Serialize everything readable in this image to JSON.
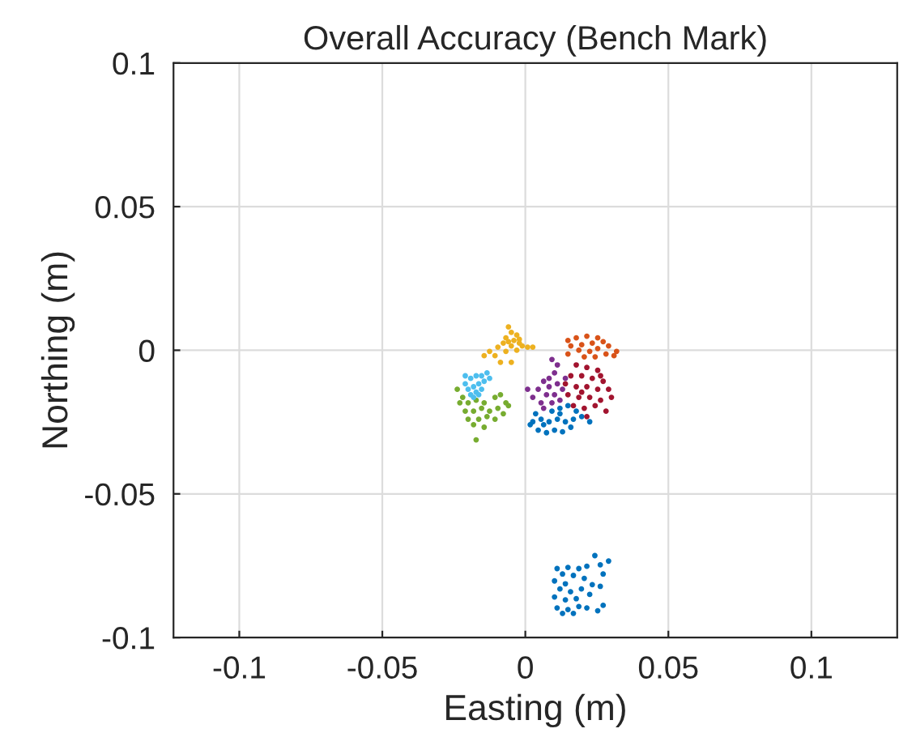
{
  "chart_data": {
    "type": "scatter",
    "title": "Overall Accuracy (Bench Mark)",
    "xlabel": "Easting (m)",
    "ylabel": "Northing (m)",
    "xlim": [
      -0.123,
      0.13
    ],
    "ylim": [
      -0.1,
      0.1
    ],
    "xticks": [
      -0.1,
      -0.05,
      0,
      0.05,
      0.1
    ],
    "yticks": [
      -0.1,
      -0.05,
      0,
      0.05,
      0.1
    ],
    "grid": true,
    "marker": "circle",
    "series": [
      {
        "color": "#0072bd",
        "x": [
          0.0036,
          0.0093,
          0.0121,
          0.0149,
          0.0178,
          0.0026,
          0.0055,
          0.0083,
          0.0112,
          0.014,
          0.0168,
          0.0197,
          0.0045,
          0.0074,
          0.0102,
          0.013,
          0.0159,
          0.0225,
          0.0017,
          0.0064,
          0.0121,
          0.0243,
          0.0291,
          0.0262,
          0.0111,
          0.0149,
          0.0187,
          0.0215,
          0.013,
          0.0168,
          0.0206,
          0.0272,
          0.0102,
          0.014,
          0.0234,
          0.0262,
          0.0121,
          0.0158,
          0.0196,
          0.0225,
          0.0102,
          0.014,
          0.0178,
          0.0272,
          0.0111,
          0.0149,
          0.0187,
          0.0215,
          0.0253,
          0.013,
          0.0168
        ],
        "values": [
          -0.0221,
          -0.0212,
          -0.0202,
          -0.0193,
          -0.0212,
          -0.0249,
          -0.024,
          -0.0249,
          -0.024,
          -0.0249,
          -0.024,
          -0.0231,
          -0.0278,
          -0.0287,
          -0.0278,
          -0.0284,
          -0.0268,
          -0.0249,
          -0.0259,
          -0.0259,
          -0.0221,
          -0.0715,
          -0.0734,
          -0.0747,
          -0.076,
          -0.0756,
          -0.076,
          -0.0752,
          -0.0779,
          -0.0784,
          -0.0794,
          -0.0779,
          -0.0803,
          -0.0813,
          -0.0816,
          -0.0822,
          -0.0831,
          -0.0841,
          -0.0831,
          -0.085,
          -0.0859,
          -0.0869,
          -0.0865,
          -0.0888,
          -0.0897,
          -0.0903,
          -0.0892,
          -0.0897,
          -0.0907,
          -0.0916,
          -0.0916
        ]
      },
      {
        "color": "#d95319",
        "x": [
          0.0149,
          0.0178,
          0.0215,
          0.0253,
          0.0159,
          0.0197,
          0.0234,
          0.0272,
          0.0291,
          0.0319,
          0.031,
          0.0149,
          0.0187,
          0.0225,
          0.0253,
          0.0282,
          0.0206,
          0.0244
        ],
        "values": [
          0.0034,
          0.0043,
          0.0049,
          0.0043,
          0.0015,
          0.0019,
          0.0025,
          0.003,
          0.0015,
          -0.0004,
          -0.0019,
          -0.0013,
          0,
          -0.0004,
          0.0006,
          -0.0013,
          -0.0023,
          -0.0023
        ]
      },
      {
        "color": "#edb120",
        "x": [
          -0.0059,
          -0.0049,
          -0.003,
          -0.0068,
          -0.004,
          -0.0021,
          -0.0077,
          -0.0049,
          -0.0011,
          -0.0096,
          -0.0125,
          -0.0144,
          -0.0068,
          -0.003,
          0.0008,
          0.0026,
          -0.0087,
          -0.0049,
          -0.0106,
          -0.0059,
          -0.0021
        ],
        "values": [
          0.0081,
          0.0062,
          0.0053,
          0.0043,
          0.0034,
          0.0025,
          0.0025,
          0.0015,
          0.0015,
          0.0011,
          -0.0004,
          -0.0019,
          -0.0004,
          0,
          0.0011,
          0.0011,
          -0.0042,
          -0.0042,
          -0.0019,
          0.003,
          0.0038
        ]
      },
      {
        "color": "#7e2f8e",
        "x": [
          0.0093,
          0.0112,
          0.0102,
          0.0064,
          0.0083,
          0.0112,
          0.0045,
          0.0074,
          0.0102,
          0.013,
          0.0026,
          0.0055,
          0.0093,
          0.014,
          0.0008,
          0.0121,
          0.0083,
          0.0064
        ],
        "values": [
          -0.0032,
          -0.0051,
          -0.0079,
          -0.0108,
          -0.0127,
          -0.0117,
          -0.0136,
          -0.0155,
          -0.0155,
          -0.0136,
          -0.0164,
          -0.0183,
          -0.0183,
          -0.0098,
          -0.0136,
          -0.0174,
          -0.0098,
          -0.0202
        ]
      },
      {
        "color": "#77ac30",
        "x": [
          -0.0238,
          -0.0219,
          -0.02,
          -0.0172,
          -0.0144,
          -0.0106,
          -0.0087,
          -0.0068,
          -0.021,
          -0.0181,
          -0.0153,
          -0.0125,
          -0.0096,
          -0.0077,
          -0.02,
          -0.0163,
          -0.0134,
          -0.0106,
          -0.0181,
          -0.0144,
          -0.0172,
          -0.0059,
          -0.0229
        ],
        "values": [
          -0.0136,
          -0.0164,
          -0.0183,
          -0.0174,
          -0.0183,
          -0.0164,
          -0.0155,
          -0.0183,
          -0.0212,
          -0.0212,
          -0.0202,
          -0.0212,
          -0.0202,
          -0.0221,
          -0.024,
          -0.024,
          -0.0231,
          -0.024,
          -0.0259,
          -0.0268,
          -0.0312,
          -0.0193,
          -0.0183
        ]
      },
      {
        "color": "#4dbeee",
        "x": [
          -0.021,
          -0.0191,
          -0.0172,
          -0.0153,
          -0.0134,
          -0.02,
          -0.0181,
          -0.0163,
          -0.0144,
          -0.0191,
          -0.0172,
          -0.0153,
          -0.0125,
          -0.021,
          -0.0181,
          -0.0163
        ],
        "values": [
          -0.0117,
          -0.0098,
          -0.0089,
          -0.0089,
          -0.0079,
          -0.0136,
          -0.0127,
          -0.0117,
          -0.0108,
          -0.0155,
          -0.0146,
          -0.0136,
          -0.0098,
          -0.0089,
          -0.0164,
          -0.0155
        ]
      },
      {
        "color": "#a2142f",
        "x": [
          0.0178,
          0.0215,
          0.0253,
          0.0159,
          0.0197,
          0.0234,
          0.0272,
          0.014,
          0.0178,
          0.0215,
          0.0253,
          0.0291,
          0.0149,
          0.0187,
          0.0225,
          0.0263,
          0.0301,
          0.0168,
          0.0206,
          0.0244,
          0.0282,
          0.0215,
          0.0263,
          0.0197
        ],
        "values": [
          -0.0051,
          -0.006,
          -0.007,
          -0.0089,
          -0.0089,
          -0.0098,
          -0.0108,
          -0.0117,
          -0.0127,
          -0.0127,
          -0.0136,
          -0.0136,
          -0.0155,
          -0.0164,
          -0.0164,
          -0.0174,
          -0.0164,
          -0.0193,
          -0.0202,
          -0.0193,
          -0.0212,
          -0.0231,
          -0.0089,
          -0.0146
        ]
      }
    ]
  }
}
